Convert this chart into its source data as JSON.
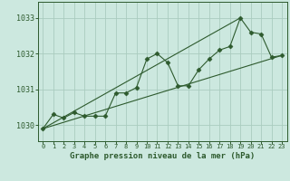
{
  "bg_color": "#cce8df",
  "grid_color": "#aaccbf",
  "line_color": "#2d5a2d",
  "marker_color": "#2d5a2d",
  "title": "Graphe pression niveau de la mer (hPa)",
  "xlabel_ticks": [
    0,
    1,
    2,
    3,
    4,
    5,
    6,
    7,
    8,
    9,
    10,
    11,
    12,
    13,
    14,
    15,
    16,
    17,
    18,
    19,
    20,
    21,
    22,
    23
  ],
  "ylim": [
    1029.55,
    1033.45
  ],
  "xlim": [
    -0.5,
    23.5
  ],
  "yticks": [
    1030,
    1031,
    1032,
    1033
  ],
  "series_main": {
    "x": [
      0,
      1,
      2,
      3,
      4,
      5,
      6,
      7,
      8,
      9,
      10,
      11,
      12,
      13,
      14,
      15,
      16,
      17,
      18,
      19,
      20,
      21,
      22,
      23
    ],
    "y": [
      1029.9,
      1030.3,
      1030.2,
      1030.35,
      1030.25,
      1030.25,
      1030.25,
      1030.9,
      1030.9,
      1031.05,
      1031.85,
      1032.0,
      1031.75,
      1031.1,
      1031.1,
      1031.55,
      1031.85,
      1032.1,
      1032.2,
      1033.0,
      1032.6,
      1032.55,
      1031.9,
      1031.95
    ]
  },
  "series_reg1": {
    "x": [
      0,
      23
    ],
    "y": [
      1029.9,
      1031.95
    ]
  },
  "series_reg2": {
    "x": [
      0,
      19
    ],
    "y": [
      1029.9,
      1033.0
    ]
  }
}
